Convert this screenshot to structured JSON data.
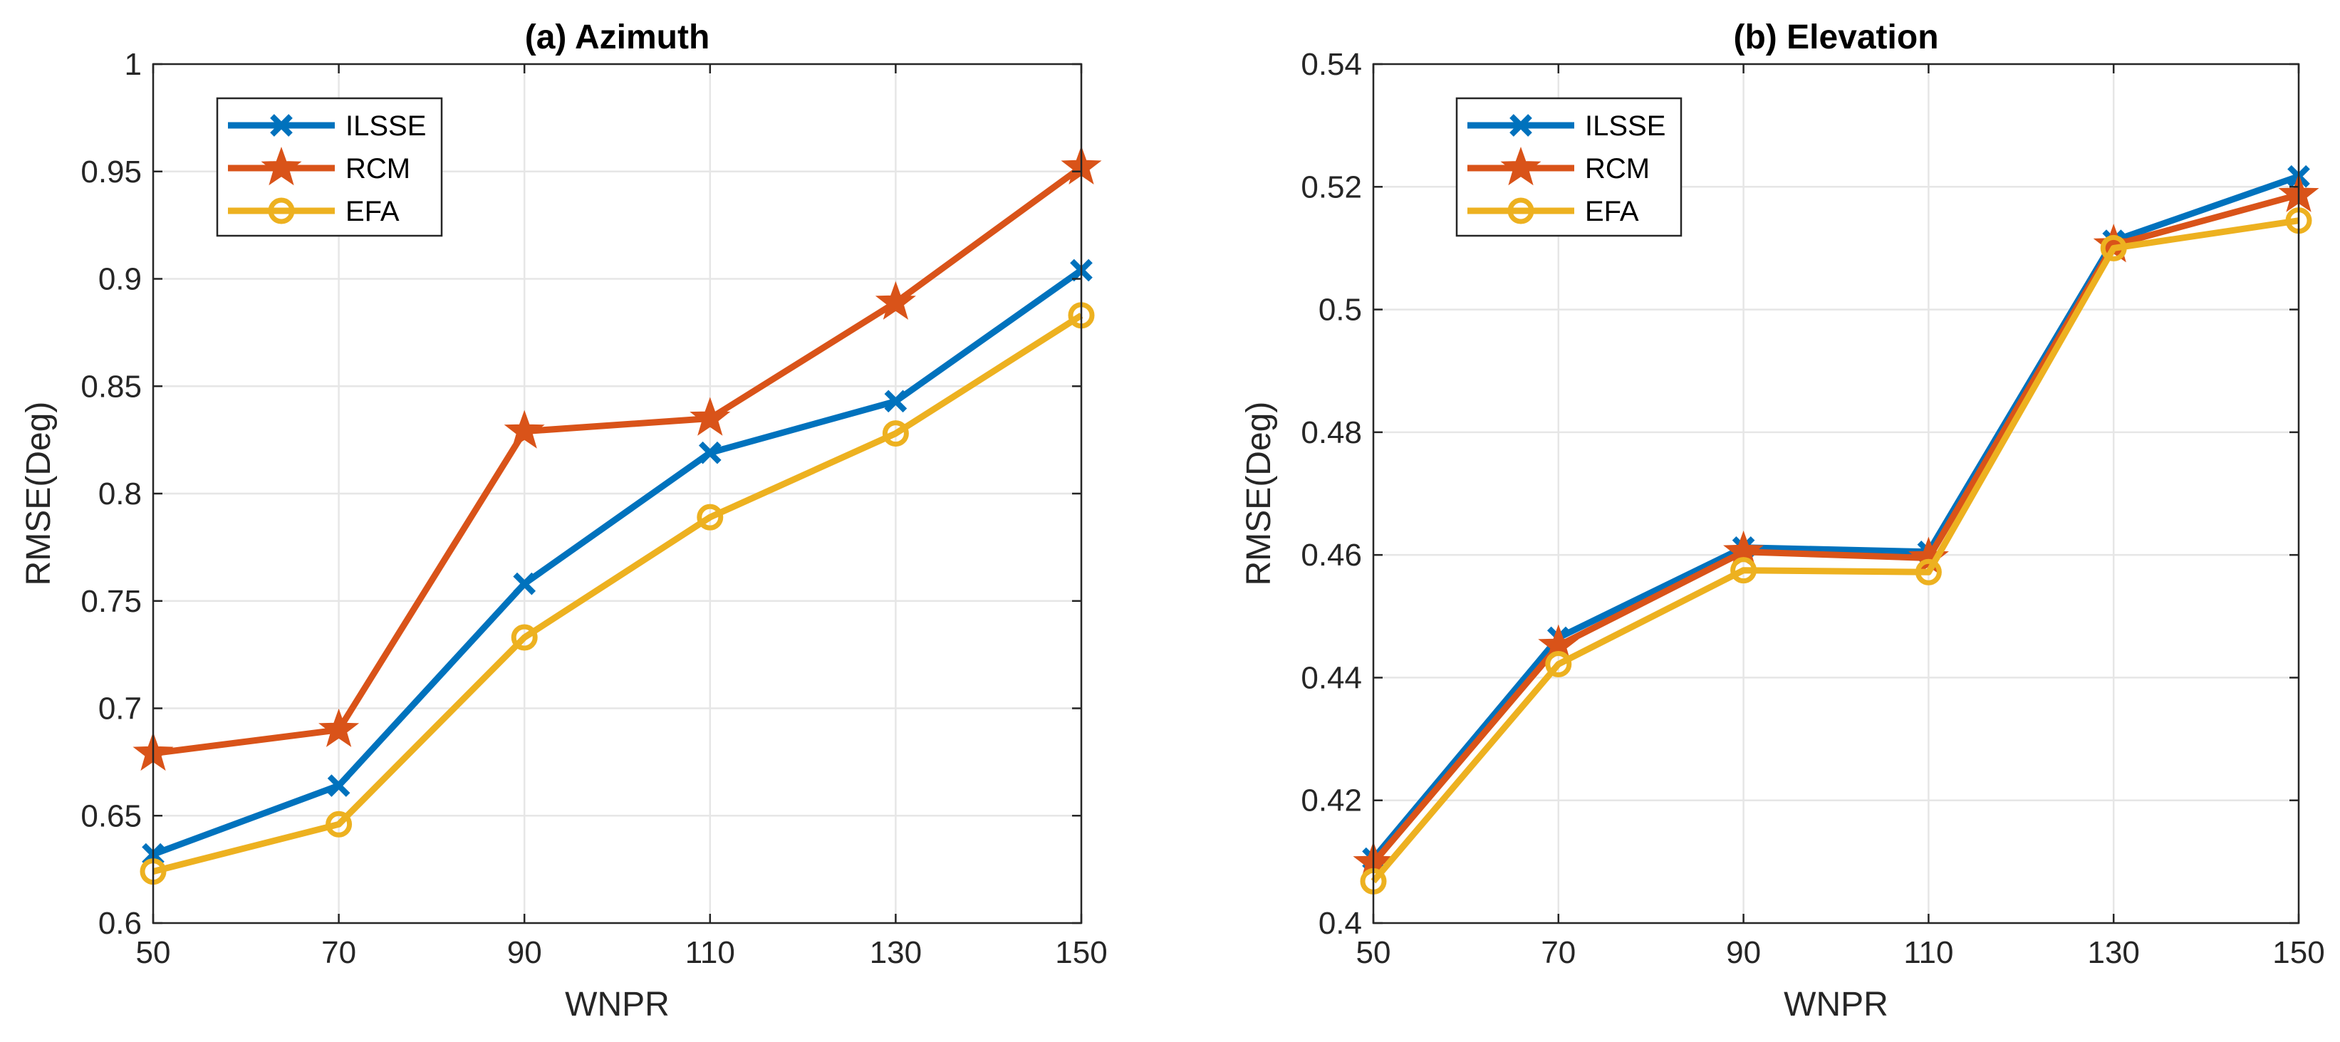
{
  "colors": {
    "ILSSE": "#0072BD",
    "RCM": "#D95319",
    "EFA": "#EDB120",
    "grid": "#E6E6E6",
    "axis": "#262626"
  },
  "chart_data": [
    {
      "type": "line",
      "title": "(a) Azimuth",
      "xlabel": "WNPR",
      "ylabel": "RMSE(Deg)",
      "x": [
        50,
        70,
        90,
        110,
        130,
        150
      ],
      "xticks": [
        "50",
        "70",
        "90",
        "110",
        "130",
        "150"
      ],
      "ylim": [
        0.6,
        1.0
      ],
      "yticks": [
        "0.6",
        "0.65",
        "0.7",
        "0.75",
        "0.8",
        "0.85",
        "0.9",
        "0.95",
        "1"
      ],
      "grid": true,
      "legend": "top-left",
      "series": [
        {
          "name": "ILSSE",
          "marker": "x",
          "values": [
            0.632,
            0.664,
            0.758,
            0.819,
            0.843,
            0.904
          ]
        },
        {
          "name": "RCM",
          "marker": "star",
          "values": [
            0.679,
            0.69,
            0.829,
            0.835,
            0.889,
            0.952
          ]
        },
        {
          "name": "EFA",
          "marker": "circle",
          "values": [
            0.624,
            0.646,
            0.733,
            0.789,
            0.828,
            0.883
          ]
        }
      ]
    },
    {
      "type": "line",
      "title": "(b) Elevation",
      "xlabel": "WNPR",
      "ylabel": "RMSE(Deg)",
      "x": [
        50,
        70,
        90,
        110,
        130,
        150
      ],
      "xticks": [
        "50",
        "70",
        "90",
        "110",
        "130",
        "150"
      ],
      "ylim": [
        0.4,
        0.54
      ],
      "yticks": [
        "0.4",
        "0.42",
        "0.44",
        "0.46",
        "0.48",
        "0.5",
        "0.52",
        "0.54"
      ],
      "grid": true,
      "legend": "top-left",
      "series": [
        {
          "name": "ILSSE",
          "marker": "x",
          "values": [
            0.4105,
            0.4465,
            0.4612,
            0.4605,
            0.5112,
            0.5217
          ]
        },
        {
          "name": "RCM",
          "marker": "star",
          "values": [
            0.4098,
            0.4452,
            0.4605,
            0.4595,
            0.5105,
            0.5187
          ]
        },
        {
          "name": "EFA",
          "marker": "circle",
          "values": [
            0.4068,
            0.4422,
            0.4575,
            0.4572,
            0.51,
            0.5145
          ]
        }
      ]
    }
  ]
}
